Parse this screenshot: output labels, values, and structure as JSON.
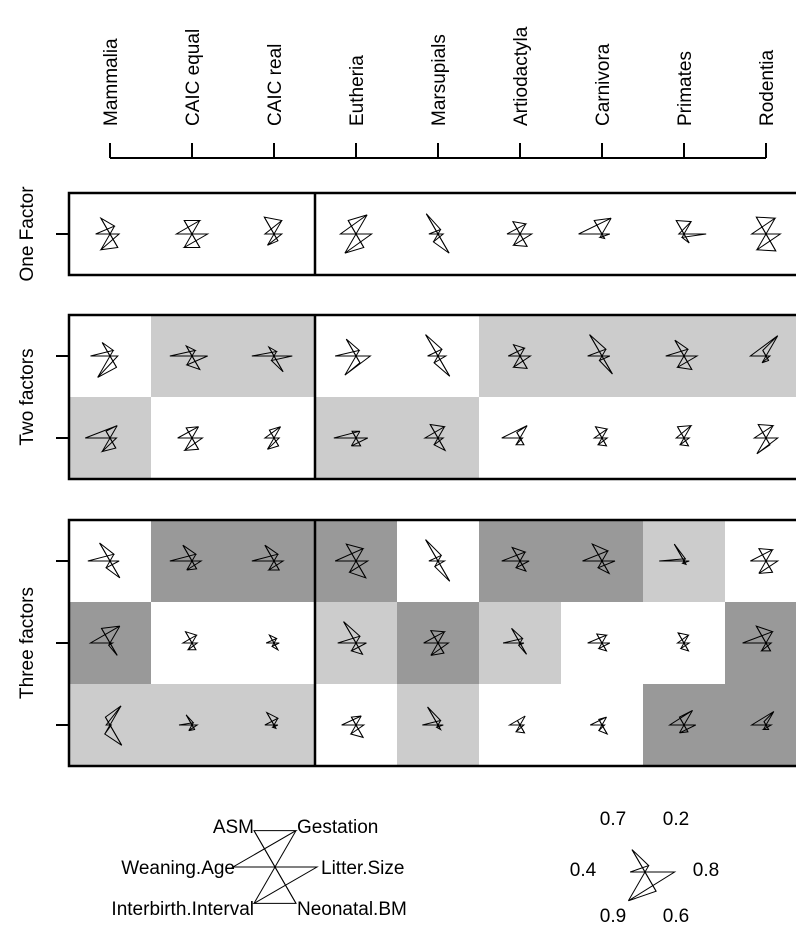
{
  "columns": [
    "Mammalia",
    "CAIC equal",
    "CAIC real",
    "Eutheria",
    "Marsupials",
    "Artiodactyla",
    "Carnivora",
    "Primates",
    "Rodentia"
  ],
  "panels": [
    {
      "label": "One Factor",
      "rows": [
        {
          "shade": [
            "w",
            "w",
            "w",
            "w",
            "w",
            "w",
            "w",
            "w",
            "w"
          ],
          "stars": [
            [
              0.7,
              0.35,
              0.55,
              0.35,
              0.7,
              0.6
            ],
            [
              0.6,
              0.6,
              0.6,
              0.6,
              0.6,
              0.6
            ],
            [
              0.75,
              0.6,
              0.35,
              0.3,
              0.5,
              0.3
            ],
            [
              0.6,
              0.85,
              0.6,
              0.6,
              0.85,
              0.6
            ],
            [
              0.9,
              0.2,
              0.35,
              0.2,
              0.35,
              0.85
            ],
            [
              0.55,
              0.45,
              0.5,
              0.45,
              0.5,
              0.55
            ],
            [
              0.6,
              0.7,
              0.9,
              0.3,
              0.15,
              0.2
            ],
            [
              0.6,
              0.55,
              0.2,
              0.85,
              0.15,
              0.4
            ],
            [
              0.75,
              0.7,
              0.55,
              0.55,
              0.7,
              0.75
            ]
          ]
        }
      ]
    },
    {
      "label": "Two factors",
      "rows": [
        {
          "shade": [
            "w",
            "l",
            "l",
            "w",
            "w",
            "l",
            "l",
            "l",
            "l"
          ],
          "stars": [
            [
              0.6,
              0.25,
              0.75,
              0.3,
              0.95,
              0.5
            ],
            [
              0.45,
              0.25,
              0.85,
              0.6,
              0.4,
              0.6
            ],
            [
              0.4,
              0.2,
              0.85,
              0.7,
              0.2,
              0.7
            ],
            [
              0.75,
              0.25,
              0.8,
              0.55,
              0.85,
              0.3
            ],
            [
              0.95,
              0.3,
              0.4,
              0.3,
              0.3,
              0.9
            ],
            [
              0.5,
              0.35,
              0.45,
              0.4,
              0.5,
              0.55
            ],
            [
              0.95,
              0.3,
              0.55,
              0.3,
              0.2,
              0.8
            ],
            [
              0.7,
              0.3,
              0.7,
              0.5,
              0.5,
              0.6
            ],
            [
              0.25,
              0.9,
              0.6,
              0.15,
              0.3,
              0.2
            ]
          ]
        },
        {
          "shade": [
            "l",
            "w",
            "w",
            "l",
            "l",
            "w",
            "w",
            "w",
            "w"
          ],
          "stars": [
            [
              0.3,
              0.55,
              0.95,
              0.25,
              0.6,
              0.45
            ],
            [
              0.45,
              0.5,
              0.55,
              0.4,
              0.55,
              0.5
            ],
            [
              0.35,
              0.5,
              0.35,
              0.2,
              0.5,
              0.35
            ],
            [
              0.3,
              0.3,
              0.85,
              0.45,
              0.35,
              0.35
            ],
            [
              0.6,
              0.5,
              0.5,
              0.2,
              0.3,
              0.55
            ],
            [
              0.25,
              0.55,
              0.7,
              0.1,
              0.3,
              0.3
            ],
            [
              0.5,
              0.4,
              0.3,
              0.2,
              0.3,
              0.35
            ],
            [
              0.5,
              0.55,
              0.3,
              0.2,
              0.3,
              0.35
            ],
            [
              0.6,
              0.55,
              0.45,
              0.45,
              0.7,
              0.3
            ]
          ]
        }
      ]
    },
    {
      "label": "Three factors",
      "rows": [
        {
          "shade": [
            "w",
            "d",
            "d",
            "d",
            "w",
            "d",
            "d",
            "l",
            "w"
          ],
          "stars": [
            [
              0.8,
              0.3,
              0.85,
              0.35,
              0.3,
              0.75
            ],
            [
              0.7,
              0.3,
              0.85,
              0.35,
              0.4,
              0.35
            ],
            [
              0.7,
              0.3,
              0.85,
              0.35,
              0.4,
              0.4
            ],
            [
              0.75,
              0.55,
              0.8,
              0.45,
              0.5,
              0.75
            ],
            [
              0.95,
              0.25,
              0.35,
              0.25,
              0.25,
              0.9
            ],
            [
              0.6,
              0.4,
              0.7,
              0.35,
              0.3,
              0.45
            ],
            [
              0.75,
              0.45,
              0.75,
              0.5,
              0.3,
              0.55
            ],
            [
              0.75,
              0.1,
              0.95,
              0.2,
              0.1,
              0.15
            ],
            [
              0.55,
              0.5,
              0.6,
              0.45,
              0.55,
              0.5
            ]
          ]
        },
        {
          "shade": [
            "d",
            "w",
            "w",
            "l",
            "d",
            "l",
            "w",
            "w",
            "d"
          ],
          "stars": [
            [
              0.65,
              0.75,
              0.75,
              0.1,
              0.1,
              0.55
            ],
            [
              0.5,
              0.35,
              0.35,
              0.2,
              0.3,
              0.3
            ],
            [
              0.35,
              0.2,
              0.3,
              0.2,
              0.15,
              0.3
            ],
            [
              0.95,
              0.3,
              0.7,
              0.4,
              0.35,
              0.5
            ],
            [
              0.55,
              0.5,
              0.55,
              0.4,
              0.55,
              0.45
            ],
            [
              0.65,
              0.2,
              0.65,
              0.15,
              0.1,
              0.5
            ],
            [
              0.4,
              0.35,
              0.55,
              0.3,
              0.25,
              0.35
            ],
            [
              0.45,
              0.35,
              0.25,
              0.2,
              0.25,
              0.35
            ],
            [
              0.75,
              0.5,
              0.9,
              0.2,
              0.35,
              0.35
            ]
          ]
        },
        {
          "shade": [
            "l",
            "l",
            "l",
            "w",
            "l",
            "w",
            "w",
            "d",
            "d"
          ],
          "stars": [
            [
              0.35,
              0.85,
              0.15,
              0.05,
              0.4,
              0.9
            ],
            [
              0.45,
              0.1,
              0.5,
              0.2,
              0.25,
              0.2
            ],
            [
              0.55,
              0.3,
              0.35,
              0.15,
              0.1,
              0.15
            ],
            [
              0.35,
              0.4,
              0.55,
              0.3,
              0.4,
              0.55
            ],
            [
              0.8,
              0.2,
              0.6,
              0.2,
              0.1,
              0.2
            ],
            [
              0.2,
              0.4,
              0.4,
              0.15,
              0.3,
              0.35
            ],
            [
              0.25,
              0.35,
              0.45,
              0.1,
              0.25,
              0.4
            ],
            [
              0.35,
              0.65,
              0.55,
              0.45,
              0.35,
              0.3
            ],
            [
              0.15,
              0.6,
              0.55,
              0.2,
              0.2,
              0.2
            ]
          ]
        }
      ]
    }
  ],
  "legend": {
    "variables": [
      "ASM",
      "Gestation",
      "Weaning.Age",
      "Litter.Size",
      "Interbirth.Interval",
      "Neonatal.BM"
    ],
    "example": {
      "labels": [
        "0.7",
        "0.2",
        "0.4",
        "0.8",
        "0.9",
        "0.6"
      ],
      "values": [
        0.7,
        0.2,
        0.4,
        0.8,
        0.9,
        0.6
      ]
    }
  },
  "colors": {
    "shade_light": "#cccccc",
    "shade_dark": "#999999",
    "line": "#000000"
  }
}
